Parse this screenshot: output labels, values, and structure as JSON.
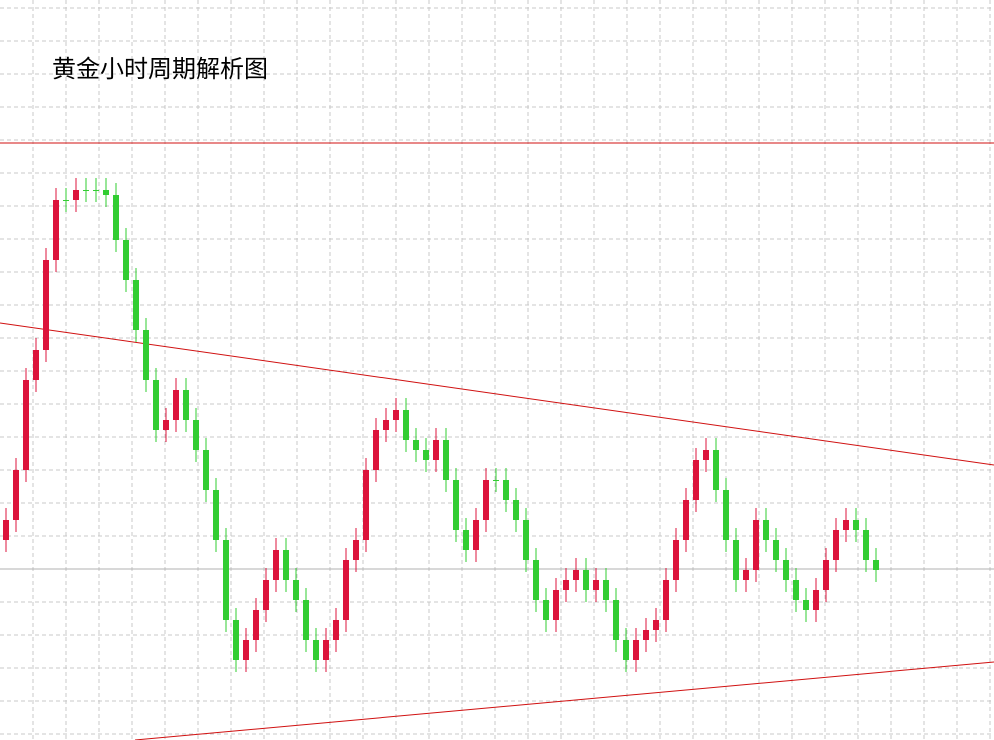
{
  "chart_data": {
    "type": "candlestick",
    "title": "黄金小时周期解析图",
    "ylim": [
      0,
      740
    ],
    "up_color": "#dc143c",
    "down_color": "#32cd32",
    "open": [
      200,
      220,
      270,
      360,
      390,
      480,
      540,
      540,
      550,
      550,
      550,
      545,
      500,
      460,
      410,
      360,
      310,
      320,
      350,
      320,
      290,
      250,
      200,
      120,
      80,
      100,
      130,
      160,
      190,
      160,
      140,
      100,
      80,
      100,
      120,
      180,
      200,
      270,
      310,
      320,
      330,
      300,
      290,
      280,
      300,
      260,
      210,
      190,
      220,
      260,
      260,
      240,
      220,
      180,
      140,
      120,
      150,
      160,
      170,
      150,
      160,
      140,
      100,
      80,
      100,
      110,
      120,
      160,
      200,
      240,
      280,
      290,
      250,
      200,
      160,
      170,
      220,
      200,
      180,
      160,
      140,
      130,
      150,
      180,
      210,
      220,
      210,
      180
    ],
    "high": [
      232,
      282,
      372,
      402,
      492,
      552,
      552,
      562,
      562,
      562,
      562,
      557,
      512,
      472,
      422,
      372,
      332,
      362,
      362,
      332,
      302,
      262,
      212,
      132,
      112,
      142,
      172,
      202,
      202,
      172,
      152,
      112,
      112,
      132,
      192,
      212,
      282,
      322,
      332,
      342,
      342,
      312,
      302,
      312,
      312,
      272,
      222,
      232,
      272,
      272,
      272,
      252,
      232,
      192,
      152,
      162,
      172,
      182,
      182,
      172,
      172,
      152,
      112,
      112,
      122,
      132,
      172,
      212,
      252,
      292,
      302,
      302,
      262,
      212,
      182,
      232,
      232,
      212,
      192,
      172,
      152,
      162,
      192,
      222,
      232,
      232,
      222,
      192
    ],
    "low": [
      188,
      208,
      258,
      348,
      378,
      468,
      528,
      528,
      538,
      538,
      533,
      488,
      448,
      398,
      348,
      298,
      298,
      308,
      308,
      278,
      238,
      188,
      108,
      68,
      68,
      88,
      118,
      148,
      148,
      128,
      88,
      68,
      68,
      88,
      108,
      168,
      188,
      258,
      298,
      308,
      288,
      278,
      268,
      268,
      248,
      198,
      178,
      178,
      208,
      248,
      228,
      208,
      168,
      128,
      108,
      108,
      138,
      148,
      138,
      138,
      128,
      88,
      68,
      68,
      88,
      98,
      108,
      148,
      188,
      228,
      268,
      238,
      188,
      148,
      148,
      158,
      188,
      168,
      148,
      128,
      118,
      118,
      138,
      168,
      198,
      198,
      168,
      158
    ],
    "close": [
      220,
      270,
      360,
      390,
      480,
      540,
      540,
      550,
      550,
      550,
      545,
      500,
      460,
      410,
      360,
      310,
      320,
      350,
      320,
      290,
      250,
      200,
      120,
      80,
      100,
      130,
      160,
      190,
      160,
      140,
      100,
      80,
      100,
      120,
      180,
      200,
      270,
      310,
      320,
      330,
      300,
      290,
      280,
      300,
      260,
      210,
      190,
      220,
      260,
      260,
      240,
      220,
      180,
      140,
      120,
      150,
      160,
      170,
      150,
      160,
      140,
      100,
      80,
      100,
      110,
      120,
      160,
      200,
      240,
      280,
      290,
      250,
      200,
      160,
      170,
      220,
      200,
      180,
      160,
      140,
      130,
      150,
      180,
      210,
      220,
      210,
      180,
      170
    ]
  }
}
